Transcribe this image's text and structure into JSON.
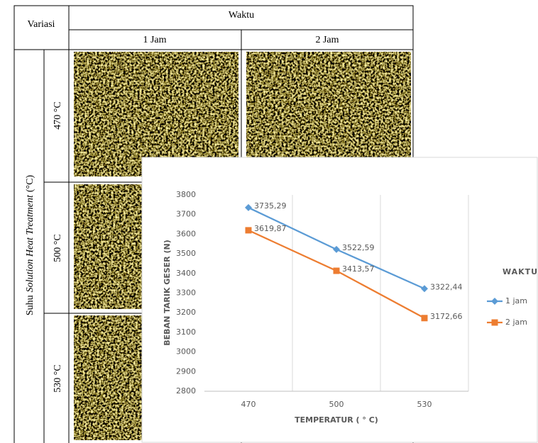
{
  "table": {
    "header": {
      "variation": "Variasi",
      "time": "Waktu",
      "columns": [
        "1 Jam",
        "2 Jam"
      ]
    },
    "side_label": {
      "prefix": "Suhu",
      "italic": "Solution Heat Treatment",
      "suffix": "(°C)"
    },
    "rows": [
      "470 °C",
      "500 °C",
      "530 °C"
    ]
  },
  "chart_data": {
    "type": "line",
    "categories": [
      "470",
      "500",
      "530"
    ],
    "series": [
      {
        "name": "1 jam",
        "color": "#5b9bd5",
        "marker": "diamond",
        "values": [
          3735.29,
          3522.59,
          3322.44
        ],
        "value_labels": [
          "3735,29",
          "3522,59",
          "3322,44"
        ]
      },
      {
        "name": "2 jam",
        "color": "#ed7d31",
        "marker": "square",
        "values": [
          3619.87,
          3413.57,
          3172.66
        ],
        "value_labels": [
          "3619,87",
          "3413,57",
          "3172,66"
        ]
      }
    ],
    "ylim": [
      2800,
      3800
    ],
    "yticks": [
      2800,
      2900,
      3000,
      3100,
      3200,
      3300,
      3400,
      3500,
      3600,
      3700,
      3800
    ],
    "y_label": "BEBAN TARIK GESER (N)",
    "x_label": "TEMPERATUR ( ° C)",
    "legend_title": "WAKTU",
    "legend": "right",
    "grid": "x"
  }
}
